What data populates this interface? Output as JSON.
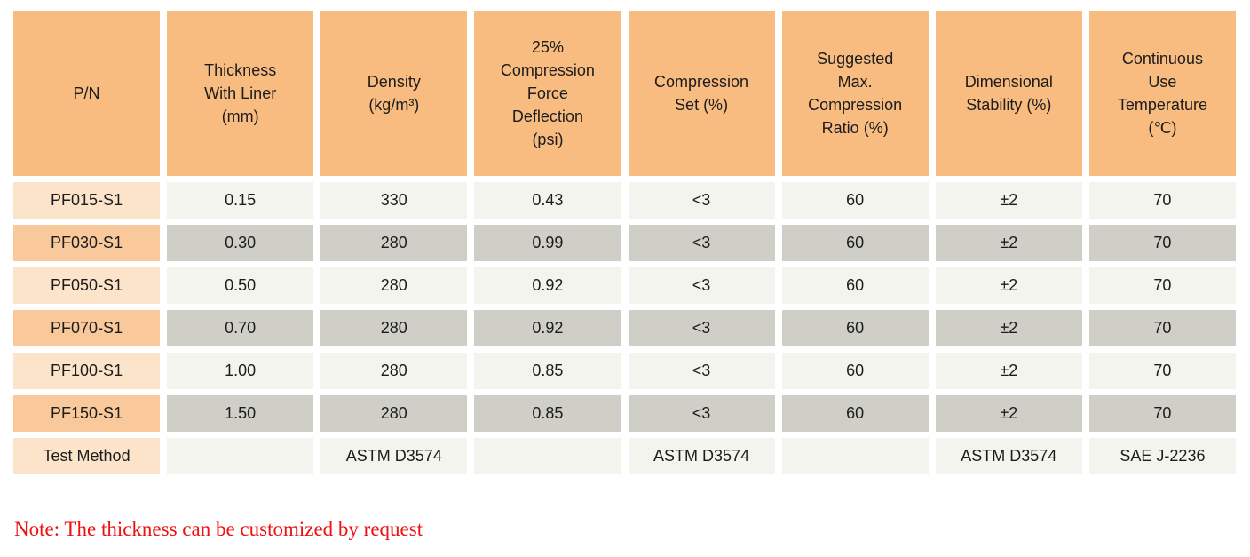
{
  "table": {
    "columns": [
      {
        "label": "P/N"
      },
      {
        "label": "Thickness\nWith Liner\n(mm)"
      },
      {
        "label": "Density\n(kg/m³)"
      },
      {
        "label": "25%\nCompression\nForce\nDeflection\n(psi)"
      },
      {
        "label": "Compression\nSet (%)"
      },
      {
        "label": "Suggested\nMax.\nCompression\nRatio (%)"
      },
      {
        "label": "Dimensional\nStability (%)"
      },
      {
        "label": "Continuous\nUse\nTemperature\n(℃)"
      }
    ],
    "rows": [
      {
        "pn": "PF015-S1",
        "cells": [
          "0.15",
          "330",
          "0.43",
          "<3",
          "60",
          "±2",
          "70"
        ]
      },
      {
        "pn": "PF030-S1",
        "cells": [
          "0.30",
          "280",
          "0.99",
          "<3",
          "60",
          "±2",
          "70"
        ]
      },
      {
        "pn": "PF050-S1",
        "cells": [
          "0.50",
          "280",
          "0.92",
          "<3",
          "60",
          "±2",
          "70"
        ]
      },
      {
        "pn": "PF070-S1",
        "cells": [
          "0.70",
          "280",
          "0.92",
          "<3",
          "60",
          "±2",
          "70"
        ]
      },
      {
        "pn": "PF100-S1",
        "cells": [
          "1.00",
          "280",
          "0.85",
          "<3",
          "60",
          "±2",
          "70"
        ]
      },
      {
        "pn": "PF150-S1",
        "cells": [
          "1.50",
          "280",
          "0.85",
          "<3",
          "60",
          "±2",
          "70"
        ]
      }
    ],
    "test_method_row": {
      "pn": "Test Method",
      "cells": [
        "",
        "ASTM D3574",
        "",
        "ASTM D3574",
        "",
        "ASTM D3574",
        "SAE J-2236"
      ]
    }
  },
  "note": "Note: The thickness can be customized by request",
  "colors": {
    "header_bg": "#F8BB80",
    "pn_row_light_bg": "#FCE4CA",
    "pn_row_dark_bg": "#F9C99C",
    "data_row_light_bg": "#F4F4EF",
    "data_row_dark_bg": "#CFCFC7",
    "note_text": "#EE1111",
    "cell_text": "#1C1C1C"
  }
}
